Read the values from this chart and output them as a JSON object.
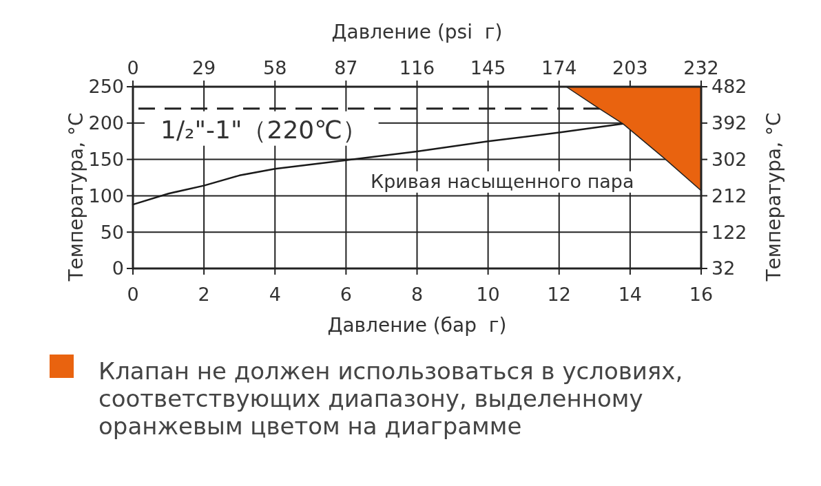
{
  "chart_data": {
    "type": "line",
    "xlabel": "Давление (бар  г)",
    "x2label": "Давление (psi  г)",
    "ylabel": "Температура, °C",
    "y2label": "Температура, °C",
    "xlim": [
      0,
      16
    ],
    "xticks": [
      0,
      2,
      4,
      6,
      8,
      10,
      12,
      14,
      16
    ],
    "x2lim": [
      0,
      232
    ],
    "x2ticks": [
      0,
      29,
      58,
      87,
      116,
      145,
      174,
      203,
      232
    ],
    "ylim": [
      0,
      250
    ],
    "yticks": [
      0,
      50,
      100,
      150,
      200,
      250
    ],
    "y2lim": [
      32,
      482
    ],
    "y2ticks": [
      32,
      122,
      212,
      302,
      392,
      482
    ],
    "grid": true,
    "legend": "bottom",
    "ref_lines": [
      {
        "axis": "y",
        "value": 220,
        "label": "1/₂\"-1\"（220℃）",
        "line_style": "dashed",
        "color": "#222222"
      }
    ],
    "series": [
      {
        "name": "Кривая насыщенного пара",
        "color": "#1a1a1a",
        "x": [
          0,
          1,
          2,
          3,
          4,
          6,
          8,
          10,
          12,
          13.8
        ],
        "values": [
          88,
          103,
          114,
          128,
          137,
          149,
          161,
          175,
          187,
          199
        ]
      },
      {
        "name": "Клапан не должен использоваться в условиях, соответствующих диапазону, выделенному оранжевым цветом на диаграмме",
        "type": "area",
        "color": "#e9630f",
        "x": [
          12.2,
          13,
          13.8,
          15,
          16,
          16
        ],
        "values": [
          250,
          224,
          199,
          150,
          107,
          250
        ]
      }
    ]
  }
}
